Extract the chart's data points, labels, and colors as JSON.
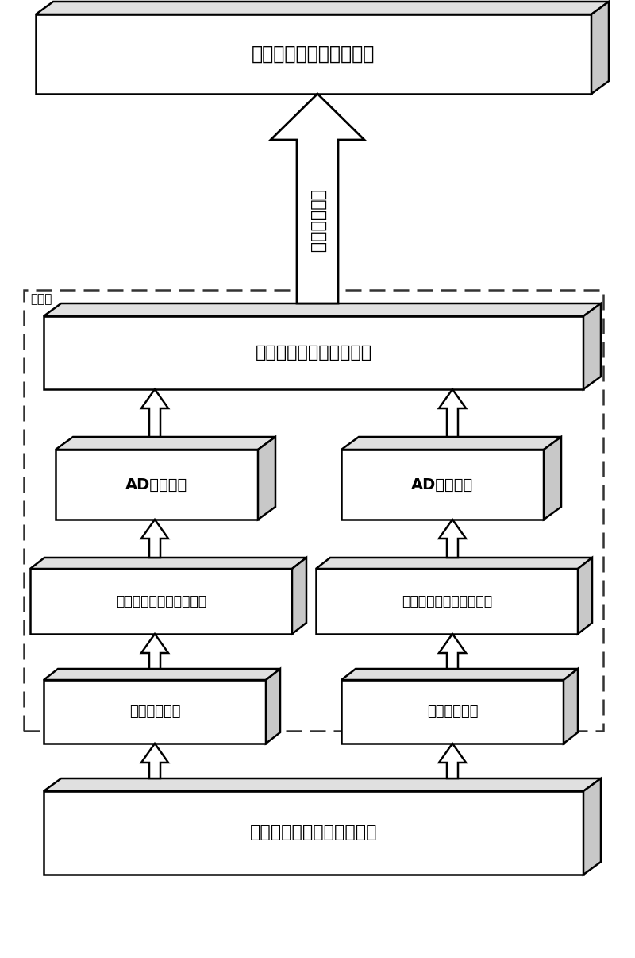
{
  "boxes": {
    "top": "监测装置的电流采样回路",
    "middle": "采集数据整理与判断系统",
    "ad_left": "AD采集部分",
    "ad_right": "AD采集部分",
    "sensor_left": "装置侧测量型电流传感器",
    "sensor_right": "装置侧保护型电流传感器",
    "signal_left": "测量回路信号",
    "signal_right": "保护回路信号",
    "bottom": "一次电流互感器二次侧信号"
  },
  "arrow_label": "优化采样结果",
  "collector_label": "采集器",
  "bg_color": "#ffffff",
  "box_face_color": "#ffffff",
  "box_top_color": "#e8e8e8",
  "box_right_color": "#d0d0d0",
  "box_edge_color": "#000000"
}
